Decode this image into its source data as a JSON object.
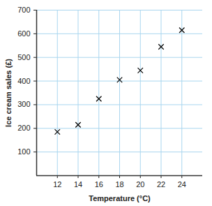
{
  "chart_data": {
    "type": "scatter",
    "x_label": "Temperature (°C)",
    "y_label": "Ice cream sales (£)",
    "x": [
      12,
      14,
      16,
      18,
      20,
      22,
      24
    ],
    "values": [
      185,
      215,
      325,
      405,
      445,
      545,
      615
    ],
    "color": "#000000",
    "marker": "x",
    "xlim": [
      10,
      26
    ],
    "xticks": [
      12,
      14,
      16,
      18,
      20,
      22,
      24
    ],
    "ylim": [
      0,
      700
    ],
    "yticks": [
      100,
      200,
      300,
      400,
      500,
      600,
      700
    ],
    "grid": true
  }
}
